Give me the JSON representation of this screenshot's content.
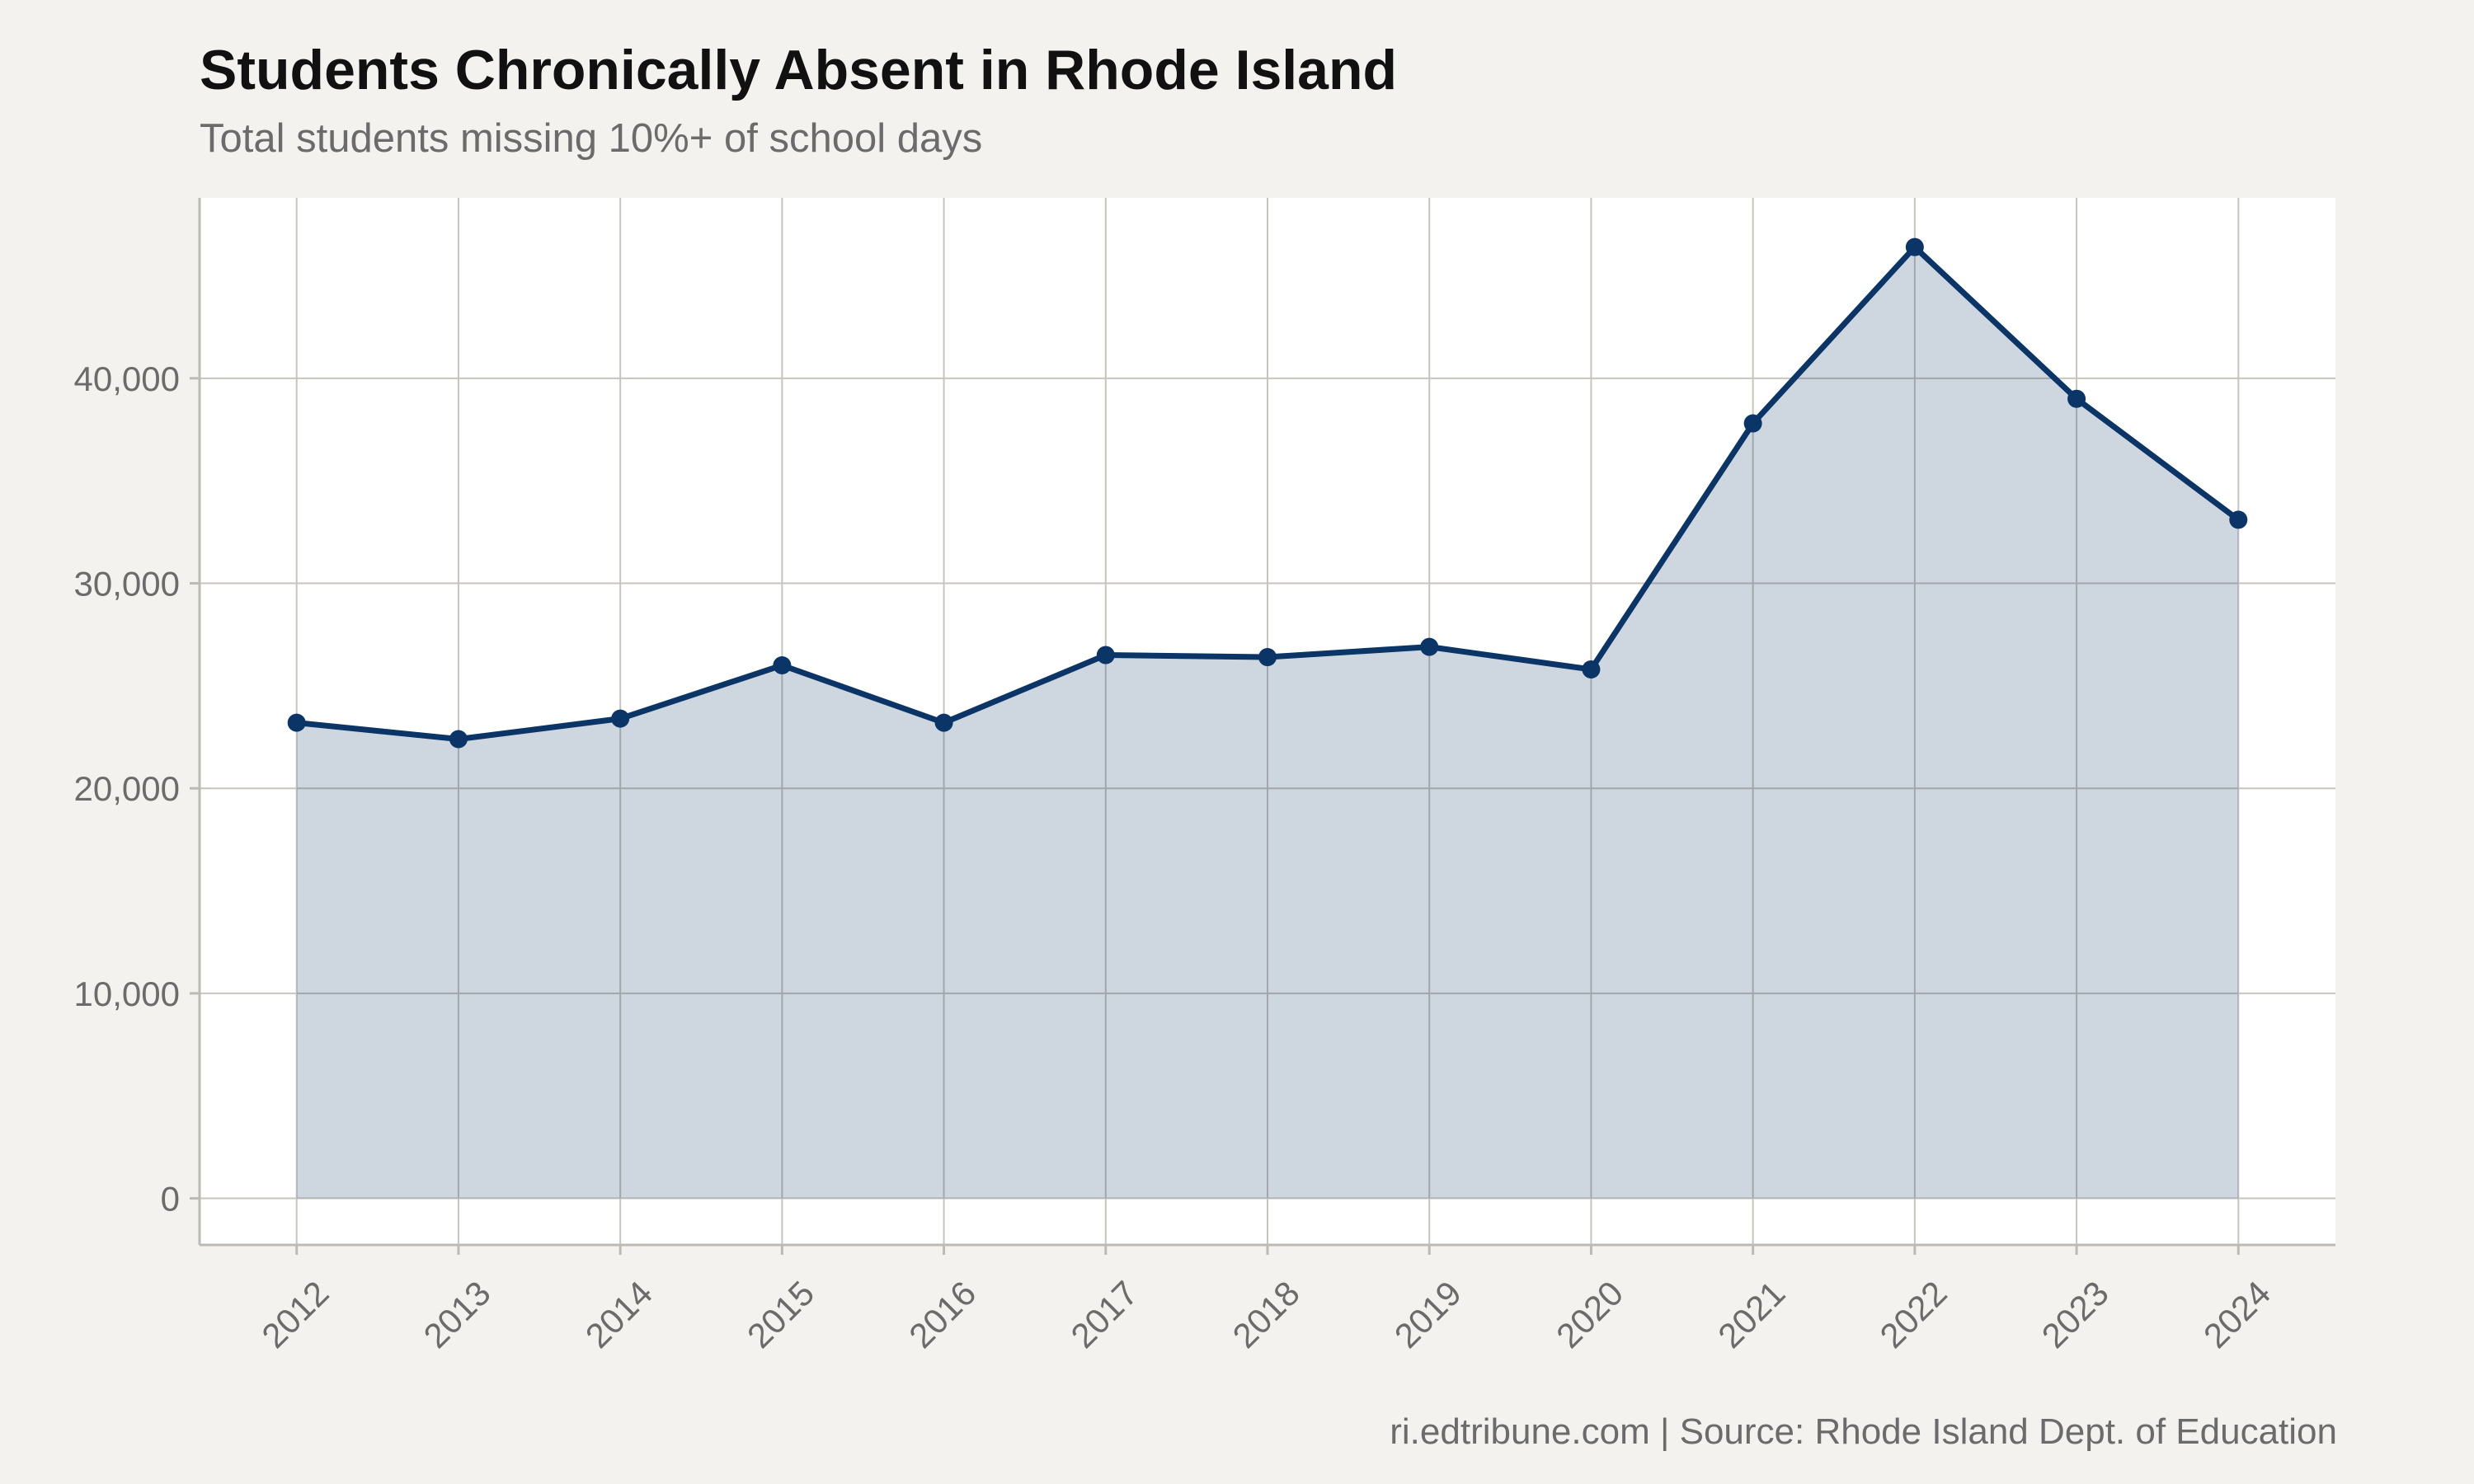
{
  "title": "Students Chronically Absent in Rhode Island",
  "subtitle": "Total students missing 10%+ of school days",
  "caption": "ri.edtribune.com | Source: Rhode Island Dept. of Education",
  "colors": {
    "line": "#0b3566",
    "area_fill": "#ccd6e0",
    "background": "#f4f2ee",
    "panel": "#ffffff",
    "grid": "#c7c4bd"
  },
  "chart_data": {
    "type": "area",
    "x": [
      2012,
      2013,
      2014,
      2015,
      2016,
      2017,
      2018,
      2019,
      2020,
      2021,
      2022,
      2023,
      2024
    ],
    "x_tick_labels": [
      "2012",
      "2013",
      "2014",
      "2015",
      "2016",
      "2017",
      "2018",
      "2019",
      "2020",
      "2021",
      "2022",
      "2023",
      "2024"
    ],
    "series": [
      {
        "values": [
          23200,
          22400,
          23400,
          26000,
          23200,
          26500,
          26400,
          26900,
          25800,
          37800,
          46400,
          39000,
          33100
        ]
      }
    ],
    "y_ticks": [
      0,
      10000,
      20000,
      30000,
      40000
    ],
    "y_tick_labels": [
      "0",
      "10,000",
      "20,000",
      "30,000",
      "40,000"
    ],
    "ylim": [
      -2270,
      48800
    ],
    "xlim": [
      2011.4,
      2024.6
    ],
    "markers": true,
    "grid": true,
    "legend": "none"
  }
}
